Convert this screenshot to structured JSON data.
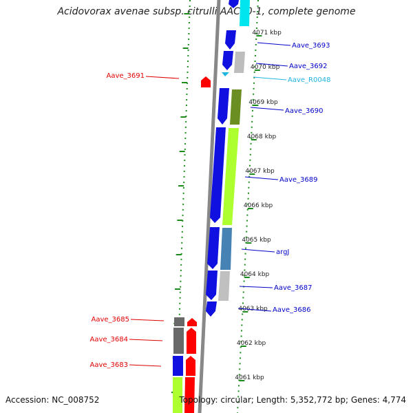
{
  "title": "Acidovorax avenae subsp. citrulli AAC00-1, complete genome",
  "accession": "Accession: NC_008752",
  "topology": "Topology: circular; Length: 5,352,772 bp; Genes: 4,774",
  "colors": {
    "forward_label": "#0000c8",
    "reverse_label": "#e00000",
    "rna_label": "#20b4e0",
    "tick": "#1a8a1a",
    "axis": "#888888"
  },
  "scale_labels": [
    "4071 kbp",
    "4070 kbp",
    "4069 kbp",
    "4068 kbp",
    "4067 kbp",
    "4066 kbp",
    "4065 kbp",
    "4064 kbp",
    "4063 kbp",
    "4062 kbp",
    "4061 kbp"
  ],
  "gene_labels": [
    {
      "name": "Aave_3693",
      "strand": "forward"
    },
    {
      "name": "Aave_3692",
      "strand": "forward"
    },
    {
      "name": "Aave_R0048",
      "strand": "rna"
    },
    {
      "name": "Aave_3691",
      "strand": "reverse"
    },
    {
      "name": "Aave_3690",
      "strand": "forward"
    },
    {
      "name": "Aave_3689",
      "strand": "forward"
    },
    {
      "name": "argJ",
      "strand": "forward"
    },
    {
      "name": "Aave_3687",
      "strand": "forward"
    },
    {
      "name": "Aave_3686",
      "strand": "forward"
    },
    {
      "name": "Aave_3685",
      "strand": "reverse"
    },
    {
      "name": "Aave_3684",
      "strand": "reverse"
    },
    {
      "name": "Aave_3683",
      "strand": "reverse"
    }
  ]
}
